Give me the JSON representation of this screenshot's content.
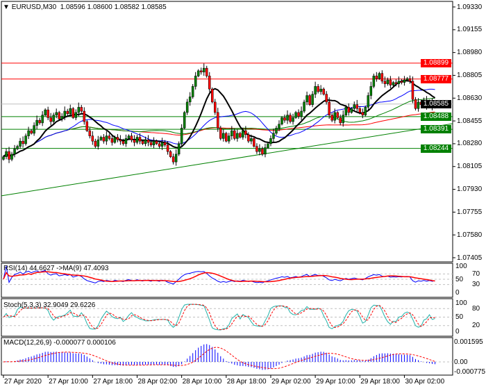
{
  "header": {
    "symbol": "EURUSD,M30",
    "ohlc": "1.08596 1.08600 1.08582 1.08585"
  },
  "colors": {
    "bull": "#008000",
    "bear": "#ff0000",
    "ma_fast": "#000000",
    "ma_mid": "#0000ff",
    "ma_slow": "#008000",
    "ma_long": "#ff0000",
    "resistance": "#ff0000",
    "support": "#008000",
    "current": "#000000"
  },
  "chart_data": [
    {
      "type": "candlestick",
      "ylim": [
        1.07405,
        1.0933
      ],
      "y_ticks": [
        "1.09330",
        "1.09155",
        "1.08980",
        "1.08805",
        "1.08630",
        "1.08455",
        "1.08280",
        "1.08105",
        "1.07930",
        "1.07755",
        "1.07580",
        "1.07405"
      ],
      "x_ticks": [
        {
          "bar": 0,
          "label": "27 Apr 2020"
        },
        {
          "bar": 16,
          "label": "27 Apr 10:00"
        },
        {
          "bar": 32,
          "label": "27 Apr 18:00"
        },
        {
          "bar": 48,
          "label": "28 Apr 02:00"
        },
        {
          "bar": 64,
          "label": "28 Apr 10:00"
        },
        {
          "bar": 80,
          "label": "28 Apr 18:00"
        },
        {
          "bar": 96,
          "label": "29 Apr 02:00"
        },
        {
          "bar": 112,
          "label": "29 Apr 10:00"
        },
        {
          "bar": 128,
          "label": "29 Apr 18:00"
        },
        {
          "bar": 144,
          "label": "30 Apr 02:00"
        }
      ],
      "closes": [
        1.0818,
        1.0822,
        1.0816,
        1.082,
        1.0824,
        1.0826,
        1.083,
        1.0828,
        1.0834,
        1.0838,
        1.0836,
        1.0842,
        1.0846,
        1.0844,
        1.085,
        1.0854,
        1.0848,
        1.0845,
        1.085,
        1.0852,
        1.0847,
        1.0849,
        1.0853,
        1.0851,
        1.0855,
        1.0848,
        1.0852,
        1.0856,
        1.0853,
        1.0845,
        1.0838,
        1.0834,
        1.083,
        1.0826,
        1.0831,
        1.0833,
        1.083,
        1.0834,
        1.0832,
        1.0829,
        1.0833,
        1.0831,
        1.083,
        1.0828,
        1.0832,
        1.0834,
        1.0831,
        1.0829,
        1.0833,
        1.083,
        1.0828,
        1.0831,
        1.0829,
        1.0827,
        1.083,
        1.0828,
        1.0826,
        1.0829,
        1.0827,
        1.0822,
        1.0818,
        1.0814,
        1.082,
        1.0828,
        1.084,
        1.0852,
        1.086,
        1.0864,
        1.0872,
        1.088,
        1.0884,
        1.0883,
        1.0886,
        1.088,
        1.087,
        1.086,
        1.0852,
        1.084,
        1.0832,
        1.0836,
        1.083,
        1.0834,
        1.0838,
        1.0832,
        1.0836,
        1.0833,
        1.0838,
        1.0835,
        1.083,
        1.0832,
        1.0826,
        1.0822,
        1.0824,
        1.082,
        1.0825,
        1.0828,
        1.0832,
        1.0836,
        1.084,
        1.0843,
        1.0848,
        1.0846,
        1.085,
        1.0845,
        1.0848,
        1.0852,
        1.0849,
        1.0853,
        1.086,
        1.0865,
        1.0858,
        1.0866,
        1.0872,
        1.0868,
        1.087,
        1.0866,
        1.086,
        1.085,
        1.0846,
        1.0852,
        1.0848,
        1.0844,
        1.085,
        1.0856,
        1.0852,
        1.0855,
        1.0858,
        1.0855,
        1.0852,
        1.085,
        1.0856,
        1.0865,
        1.0872,
        1.088,
        1.0878,
        1.0882,
        1.0876,
        1.0874,
        1.0877,
        1.0873,
        1.0875,
        1.0874,
        1.0876,
        1.0875,
        1.0877,
        1.0878,
        1.0876,
        1.0862,
        1.0855,
        1.086,
        1.0858,
        1.0861,
        1.0857,
        1.086,
        1.0856,
        1.08585
      ],
      "levels": [
        {
          "price": "1.08899",
          "kind": "resistance"
        },
        {
          "price": "1.08777",
          "kind": "resistance"
        },
        {
          "price": "1.08585",
          "kind": "current"
        },
        {
          "price": "1.08488",
          "kind": "support"
        },
        {
          "price": "1.08391",
          "kind": "support"
        },
        {
          "price": "1.08244",
          "kind": "support"
        }
      ],
      "trendline": {
        "start_price": 1.0788,
        "end_price": 1.08434
      }
    },
    {
      "type": "line",
      "label": "RSI(14) 44.6627  ->MA(9) 47.4093",
      "ylim": [
        0,
        100
      ],
      "y_ticks": [
        "100",
        "70",
        "50",
        "30",
        "0"
      ],
      "levels": [
        70,
        50,
        30
      ]
    },
    {
      "type": "line",
      "label": "Stoch(5,3,3) 32.9049 29.6226",
      "ylim": [
        0,
        100
      ],
      "y_ticks": [
        "100",
        "80",
        "50",
        "20",
        "0"
      ],
      "levels": [
        80,
        50,
        20
      ]
    },
    {
      "type": "bar",
      "label": "MACD(12,26,9) -0.000077 0.000106",
      "ylim": [
        -0.000775,
        0.001595
      ],
      "y_ticks": [
        "0.001595",
        "0.00",
        "-0.000775"
      ]
    }
  ]
}
